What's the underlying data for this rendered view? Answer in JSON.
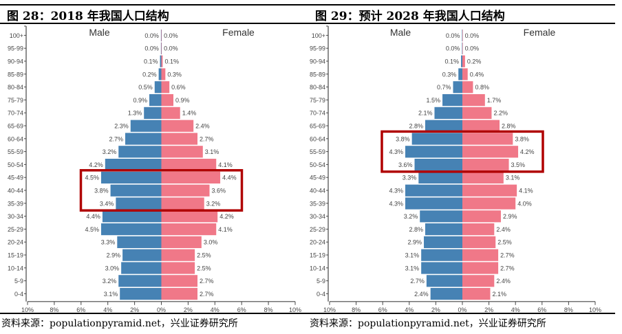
{
  "figures": [
    {
      "title": "图 28：2018 年我国人口结构",
      "source": "资料来源：populationpyramid.net，兴业证券研究所"
    },
    {
      "title": "图 29：预计 2028 年我国人口结构",
      "source": "资料来源：populationpyramid.net，兴业证券研究所"
    }
  ],
  "colors": {
    "male": "#4682b4",
    "female": "#f07888",
    "highlight": "#b00000",
    "axis": "#444444"
  },
  "chart_data": [
    {
      "type": "bar",
      "orientation": "horizontal-pyramid",
      "title": "2018 年我国人口结构",
      "categories": [
        "100+",
        "95-99",
        "90-94",
        "85-89",
        "80-84",
        "75-79",
        "70-74",
        "65-69",
        "60-64",
        "55-59",
        "50-54",
        "45-49",
        "40-44",
        "35-39",
        "30-34",
        "25-29",
        "20-24",
        "15-19",
        "10-14",
        "5-9",
        "0-4"
      ],
      "series": [
        {
          "name": "Male",
          "values": [
            0.0,
            0.0,
            0.1,
            0.2,
            0.5,
            0.9,
            1.3,
            2.3,
            2.7,
            3.2,
            4.2,
            4.5,
            3.8,
            3.4,
            4.4,
            4.5,
            3.3,
            2.9,
            3.0,
            3.2,
            3.1
          ]
        },
        {
          "name": "Female",
          "values": [
            0.0,
            0.0,
            0.1,
            0.3,
            0.6,
            0.9,
            1.4,
            2.4,
            2.7,
            3.1,
            4.1,
            4.4,
            3.6,
            3.2,
            4.2,
            4.1,
            3.0,
            2.5,
            2.5,
            2.7,
            2.7
          ]
        }
      ],
      "labels": {
        "male": [
          "0.0%",
          "0.0%",
          "0.1%",
          "0.2%",
          "0.5%",
          "0.9%",
          "1.3%",
          "2.3%",
          "2.7%",
          "3.2%",
          "4.2%",
          "4.5%",
          "3.8%",
          "3.4%",
          "4.4%",
          "4.5%",
          "3.3%",
          "2.9%",
          "3.0%",
          "3.2%",
          "3.1%"
        ],
        "female": [
          "0.0%",
          "0.0%",
          "0.1%",
          "0.3%",
          "0.6%",
          "0.9%",
          "1.4%",
          "2.4%",
          "2.7%",
          "3.1%",
          "4.1%",
          "4.4%",
          "3.6%",
          "3.2%",
          "4.2%",
          "4.1%",
          "3.0%",
          "2.5%",
          "2.5%",
          "2.7%",
          "2.7%"
        ]
      },
      "xticks": [
        "10%",
        "8%",
        "6%",
        "4%",
        "2%",
        "0%",
        "2%",
        "4%",
        "6%",
        "8%",
        "10%"
      ],
      "xlim": [
        -10,
        10
      ],
      "legend": [
        "Male",
        "Female"
      ],
      "highlight_categories": [
        "45-49",
        "40-44",
        "35-39"
      ],
      "grid": false
    },
    {
      "type": "bar",
      "orientation": "horizontal-pyramid",
      "title": "预计 2028 年我国人口结构",
      "categories": [
        "100+",
        "95-99",
        "90-94",
        "85-89",
        "80-84",
        "75-79",
        "70-74",
        "65-69",
        "60-64",
        "55-59",
        "50-54",
        "45-49",
        "40-44",
        "35-39",
        "30-34",
        "25-29",
        "20-24",
        "15-19",
        "10-14",
        "5-9",
        "0-4"
      ],
      "series": [
        {
          "name": "Male",
          "values": [
            0.0,
            0.0,
            0.1,
            0.3,
            0.7,
            1.5,
            2.1,
            2.8,
            3.8,
            4.3,
            3.6,
            3.3,
            4.3,
            4.3,
            3.2,
            2.8,
            2.9,
            3.1,
            3.1,
            2.7,
            2.4
          ]
        },
        {
          "name": "Female",
          "values": [
            0.0,
            0.0,
            0.2,
            0.4,
            0.8,
            1.7,
            2.2,
            2.8,
            3.8,
            4.2,
            3.5,
            3.1,
            4.1,
            4.0,
            2.9,
            2.4,
            2.5,
            2.7,
            2.7,
            2.4,
            2.1
          ]
        }
      ],
      "labels": {
        "male": [
          "0.0%",
          "0.0%",
          "0.1%",
          "0.3%",
          "0.7%",
          "1.5%",
          "2.1%",
          "2.8%",
          "3.8%",
          "4.3%",
          "3.6%",
          "3.3%",
          "4.3%",
          "4.3%",
          "3.2%",
          "2.8%",
          "2.9%",
          "3.1%",
          "3.1%",
          "2.7%",
          "2.4%"
        ],
        "female": [
          "0.0%",
          "0.0%",
          "0.2%",
          "0.4%",
          "0.8%",
          "1.7%",
          "2.2%",
          "2.8%",
          "3.8%",
          "4.2%",
          "3.5%",
          "3.1%",
          "4.1%",
          "4.0%",
          "2.9%",
          "2.4%",
          "2.5%",
          "2.7%",
          "2.7%",
          "2.4%",
          "2.1%"
        ]
      },
      "xticks": [
        "10%",
        "8%",
        "6%",
        "4%",
        "2%",
        "0%",
        "2%",
        "4%",
        "6%",
        "8%",
        "10%"
      ],
      "xlim": [
        -10,
        10
      ],
      "legend": [
        "Male",
        "Female"
      ],
      "highlight_categories": [
        "60-64",
        "55-59",
        "50-54"
      ],
      "grid": false
    }
  ]
}
